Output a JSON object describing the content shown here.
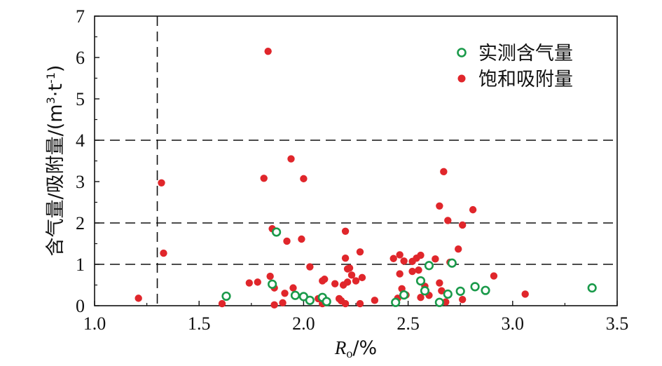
{
  "chart_data": {
    "type": "scatter",
    "xlabel_main": "R",
    "xlabel_sub": "o",
    "xlabel_unit": "/%",
    "ylabel_text": "含气量/吸附量/(m",
    "ylabel_sup1": "3",
    "ylabel_mid": "·t",
    "ylabel_sup2": "-1",
    "ylabel_end": ")",
    "xlim": [
      1.0,
      3.5
    ],
    "ylim": [
      0,
      7
    ],
    "xticks": [
      "1.0",
      "1.5",
      "2.0",
      "2.5",
      "3.0",
      "3.5"
    ],
    "yticks": [
      "0",
      "1",
      "2",
      "3",
      "4",
      "5",
      "6",
      "7"
    ],
    "hlines": [
      1,
      2,
      4
    ],
    "vline": 1.3,
    "legend_position": "top-right",
    "colors": {
      "measured": "#1a9a4a",
      "adsorption": "#e0262b"
    },
    "series": [
      {
        "name": "实测含气量",
        "marker": "open-circle",
        "points": [
          [
            1.63,
            0.23
          ],
          [
            1.85,
            0.52
          ],
          [
            1.87,
            1.78
          ],
          [
            1.96,
            0.25
          ],
          [
            2.0,
            0.22
          ],
          [
            2.03,
            0.13
          ],
          [
            2.09,
            0.2
          ],
          [
            2.11,
            0.1
          ],
          [
            2.44,
            0.08
          ],
          [
            2.48,
            0.26
          ],
          [
            2.56,
            0.6
          ],
          [
            2.58,
            0.36
          ],
          [
            2.6,
            0.97
          ],
          [
            2.65,
            0.08
          ],
          [
            2.69,
            0.28
          ],
          [
            2.71,
            1.03
          ],
          [
            2.75,
            0.35
          ],
          [
            2.82,
            0.46
          ],
          [
            2.87,
            0.37
          ],
          [
            3.38,
            0.43
          ]
        ]
      },
      {
        "name": "饱和吸附量",
        "marker": "filled-circle",
        "points": [
          [
            1.21,
            0.18
          ],
          [
            1.32,
            2.97
          ],
          [
            1.33,
            1.27
          ],
          [
            1.61,
            0.05
          ],
          [
            1.74,
            0.55
          ],
          [
            1.78,
            0.57
          ],
          [
            1.81,
            3.08
          ],
          [
            1.83,
            6.15
          ],
          [
            1.84,
            0.71
          ],
          [
            1.85,
            1.86
          ],
          [
            1.86,
            0.02
          ],
          [
            1.86,
            0.43
          ],
          [
            1.9,
            0.07
          ],
          [
            1.91,
            0.3
          ],
          [
            1.92,
            1.56
          ],
          [
            1.94,
            3.55
          ],
          [
            1.95,
            0.43
          ],
          [
            1.99,
            1.61
          ],
          [
            2.0,
            3.07
          ],
          [
            2.03,
            0.94
          ],
          [
            2.07,
            0.17
          ],
          [
            2.09,
            0.6
          ],
          [
            2.09,
            0.05
          ],
          [
            2.1,
            0.64
          ],
          [
            2.15,
            0.53
          ],
          [
            2.17,
            0.17
          ],
          [
            2.18,
            0.12
          ],
          [
            2.19,
            0.5
          ],
          [
            2.2,
            0.05
          ],
          [
            2.2,
            1.8
          ],
          [
            2.2,
            1.15
          ],
          [
            2.21,
            0.57
          ],
          [
            2.21,
            0.89
          ],
          [
            2.22,
            0.91
          ],
          [
            2.23,
            0.74
          ],
          [
            2.25,
            0.6
          ],
          [
            2.27,
            1.3
          ],
          [
            2.27,
            0.05
          ],
          [
            2.28,
            0.68
          ],
          [
            2.34,
            0.13
          ],
          [
            2.43,
            1.14
          ],
          [
            2.45,
            0.18
          ],
          [
            2.46,
            0.77
          ],
          [
            2.46,
            1.23
          ],
          [
            2.47,
            0.41
          ],
          [
            2.48,
            1.08
          ],
          [
            2.49,
            0.26
          ],
          [
            2.52,
            0.83
          ],
          [
            2.52,
            1.07
          ],
          [
            2.54,
            1.15
          ],
          [
            2.55,
            0.86
          ],
          [
            2.56,
            1.22
          ],
          [
            2.56,
            0.2
          ],
          [
            2.58,
            0.47
          ],
          [
            2.6,
            0.25
          ],
          [
            2.63,
            1.13
          ],
          [
            2.65,
            2.41
          ],
          [
            2.65,
            0.55
          ],
          [
            2.66,
            0.36
          ],
          [
            2.67,
            3.24
          ],
          [
            2.68,
            0.09
          ],
          [
            2.69,
            2.06
          ],
          [
            2.7,
            1.05
          ],
          [
            2.74,
            1.37
          ],
          [
            2.76,
            1.95
          ],
          [
            2.76,
            0.15
          ],
          [
            2.81,
            2.32
          ],
          [
            2.91,
            0.72
          ],
          [
            3.06,
            0.28
          ]
        ]
      }
    ]
  }
}
